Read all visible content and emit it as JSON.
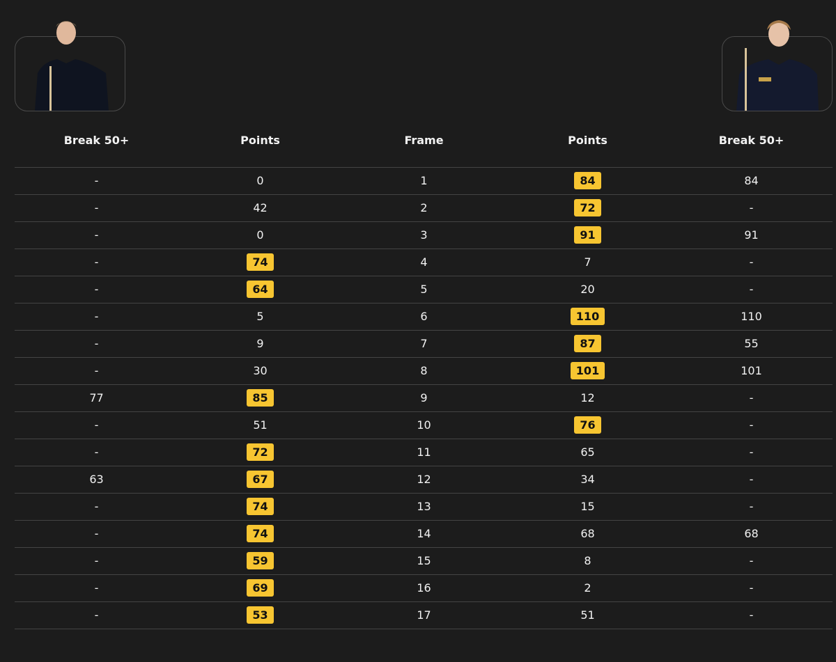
{
  "table": {
    "header": [
      "Break 50+",
      "Points",
      "Frame",
      "Points",
      "Break 50+"
    ],
    "rows": [
      [
        "-",
        0,
        1,
        84,
        84
      ],
      [
        "-",
        42,
        2,
        72,
        "-"
      ],
      [
        "-",
        0,
        3,
        91,
        91
      ],
      [
        "-",
        74,
        4,
        7,
        "-"
      ],
      [
        "-",
        64,
        5,
        20,
        "-"
      ],
      [
        "-",
        5,
        6,
        110,
        110
      ],
      [
        "-",
        9,
        7,
        87,
        55
      ],
      [
        "-",
        30,
        8,
        101,
        101
      ],
      [
        77,
        85,
        9,
        12,
        "-"
      ],
      [
        "-",
        51,
        10,
        76,
        "-"
      ],
      [
        "-",
        72,
        11,
        65,
        "-"
      ],
      [
        63,
        67,
        12,
        34,
        "-"
      ],
      [
        "-",
        74,
        13,
        15,
        "-"
      ],
      [
        "-",
        74,
        14,
        68,
        68
      ],
      [
        "-",
        59,
        15,
        8,
        "-"
      ],
      [
        "-",
        69,
        16,
        2,
        "-"
      ],
      [
        "-",
        53,
        17,
        51,
        "-"
      ]
    ]
  }
}
